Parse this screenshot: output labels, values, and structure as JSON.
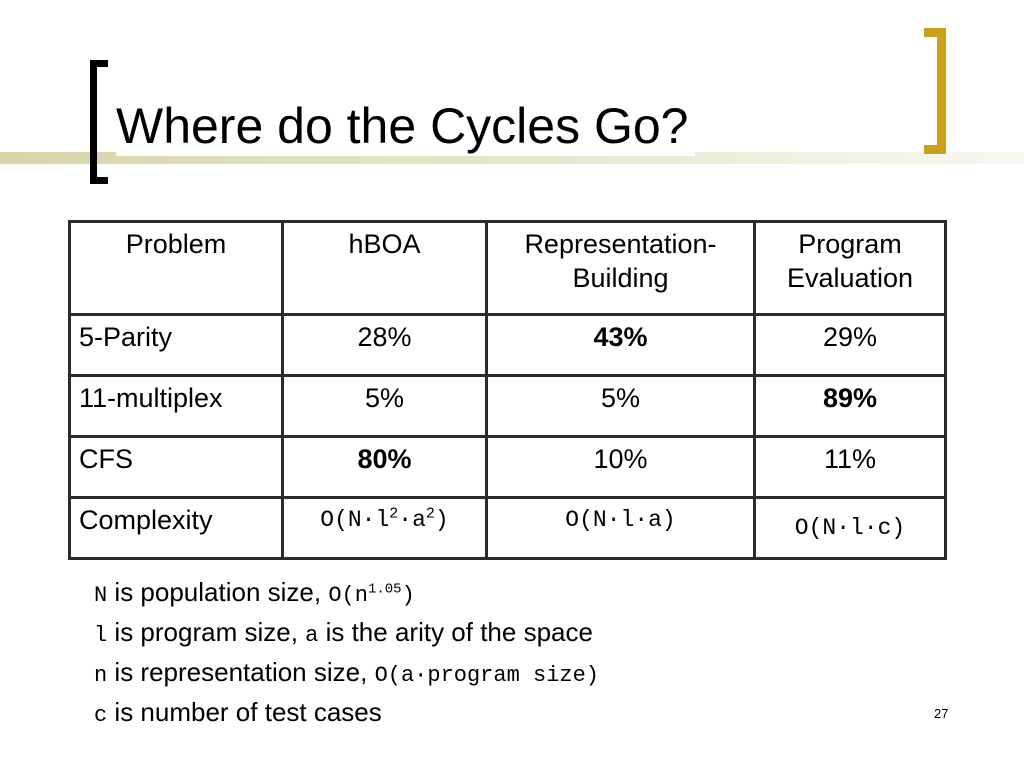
{
  "title": "Where do the Cycles Go?",
  "table": {
    "headers": [
      "Problem",
      "hBOA",
      "Representation-Building",
      "Program Evaluation"
    ],
    "header_lines": [
      [
        "Problem"
      ],
      [
        "hBOA"
      ],
      [
        "Representation-",
        "Building"
      ],
      [
        "Program",
        "Evaluation"
      ]
    ],
    "rows": [
      {
        "problem": "5-Parity",
        "hboa": "28%",
        "rep": "43%",
        "eval": "29%",
        "bold": "rep"
      },
      {
        "problem": "11-multiplex",
        "hboa": "5%",
        "rep": "5%",
        "eval": "89%",
        "bold": "eval"
      },
      {
        "problem": "CFS",
        "hboa": "80%",
        "rep": "10%",
        "eval": "11%",
        "bold": "hboa"
      }
    ],
    "complexity": {
      "label": "Complexity",
      "hboa": {
        "base": "O(N·l",
        "sup1": "2",
        "mid": "·a",
        "sup2": "2",
        "end": ")"
      },
      "rep": "O(N·l·a)",
      "eval": "O(N·l·c)"
    }
  },
  "notes": [
    {
      "var": "N",
      "text": " is population size, ",
      "expr_base": "O(n",
      "expr_sup": "1.05",
      "expr_end": ")"
    },
    {
      "var": "l",
      "text": " is program size, ",
      "var2": "a",
      "text2": " is the arity of the space"
    },
    {
      "var": "n",
      "text": " is representation size, ",
      "expr": "O(a·program size)"
    },
    {
      "var": "c",
      "text": " is number of test cases"
    }
  ],
  "page_number": "27",
  "colors": {
    "accent": "#c9a21a",
    "band": "#d8d5a8",
    "border": "#2b2b2b"
  }
}
